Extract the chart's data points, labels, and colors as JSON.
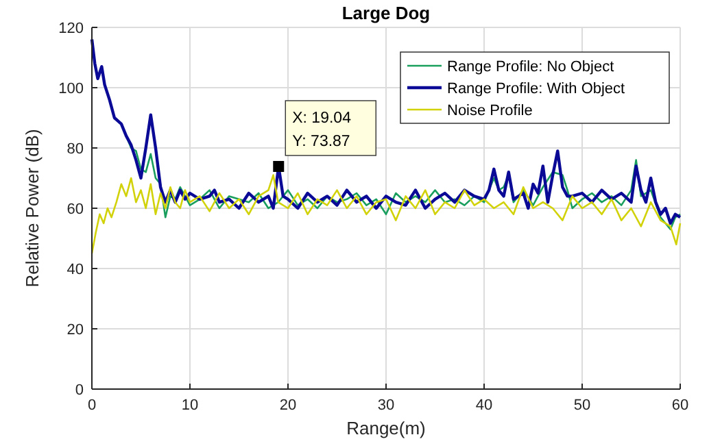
{
  "chart_data": {
    "type": "line",
    "title": "Large Dog",
    "xlabel": "Range(m)",
    "ylabel": "Relative Power (dB)",
    "xlim": [
      0,
      60
    ],
    "xticks": [
      0,
      10,
      20,
      30,
      40,
      50,
      60
    ],
    "ylim": [
      0,
      120
    ],
    "yticks": [
      0,
      20,
      40,
      60,
      80,
      100,
      120
    ],
    "grid": true,
    "legend": "top right",
    "line_style": "solid",
    "marker": "none",
    "annotations": [
      {
        "text": "X: 19.04\nY: 73.87",
        "x": 19.04,
        "y": 73.87
      }
    ],
    "series": [
      {
        "name": "Range Profile: No Object",
        "color": "#1a9e5e",
        "x": [
          3,
          3.5,
          4,
          4.5,
          5,
          5.5,
          6,
          6.5,
          7,
          7.5,
          8,
          8.5,
          9,
          10,
          11,
          12,
          13,
          14,
          15,
          16,
          17,
          18,
          19,
          20,
          21,
          22,
          23,
          24,
          25,
          26,
          27,
          28,
          29,
          30,
          31,
          32,
          33,
          34,
          35,
          36,
          37,
          38,
          39,
          40,
          41,
          41.5,
          42,
          42.5,
          43,
          44,
          45,
          46,
          47,
          48,
          48.5,
          49,
          50,
          51,
          52,
          53,
          54,
          55,
          55.5,
          56,
          57,
          58,
          59,
          59.5,
          60
        ],
        "values": [
          88,
          84,
          80,
          79,
          73,
          72,
          78,
          70,
          68,
          57,
          64,
          63,
          67,
          61,
          63,
          66,
          60,
          64,
          63,
          62,
          65,
          60,
          62,
          66,
          61,
          63,
          60,
          64,
          62,
          63,
          65,
          61,
          63,
          58,
          65,
          62,
          64,
          62,
          66,
          62,
          63,
          61,
          64,
          62,
          70,
          66,
          67,
          71,
          62,
          66,
          61,
          67,
          72,
          71,
          66,
          60,
          63,
          65,
          62,
          64,
          61,
          66,
          76,
          64,
          66,
          57,
          53,
          57,
          58
        ]
      },
      {
        "name": "Range Profile: With Object",
        "color": "#0a0a96",
        "x": [
          0,
          0.3,
          0.6,
          1,
          1.3,
          1.8,
          2.3,
          3,
          3.5,
          4,
          4.5,
          5,
          5.5,
          6,
          6.5,
          7,
          7.5,
          8,
          8.5,
          9,
          9.5,
          10,
          11,
          12,
          12.5,
          13,
          14,
          15,
          16,
          17,
          18,
          18.5,
          19.04,
          19.5,
          20,
          21,
          22,
          23,
          24,
          25,
          26,
          27,
          28,
          29,
          30,
          31,
          32,
          33,
          34,
          35,
          36,
          37,
          38,
          39,
          40,
          40.5,
          41,
          41.5,
          42,
          42.5,
          43,
          44,
          44.5,
          45,
          45.5,
          46,
          46.5,
          47,
          47.5,
          48,
          48.5,
          49,
          50,
          51,
          52,
          53,
          54,
          55,
          55.5,
          56,
          56.5,
          57,
          57.5,
          58,
          58.5,
          59,
          59.5,
          60
        ],
        "values": [
          116,
          108,
          103,
          107,
          101,
          96,
          90,
          88,
          84,
          81,
          76,
          70,
          80,
          91,
          80,
          67,
          62,
          66,
          62,
          66,
          63,
          65,
          63,
          64,
          66,
          62,
          63,
          60,
          65,
          62,
          64,
          60,
          73.87,
          64,
          63,
          60,
          65,
          62,
          64,
          61,
          66,
          62,
          64,
          60,
          64,
          62,
          61,
          66,
          60,
          63,
          65,
          62,
          66,
          64,
          63,
          66,
          73,
          66,
          64,
          72,
          63,
          65,
          60,
          68,
          65,
          74,
          62,
          71,
          79,
          67,
          64,
          64,
          65,
          62,
          66,
          63,
          65,
          62,
          74,
          66,
          62,
          70,
          62,
          58,
          60,
          55,
          58,
          57
        ]
      },
      {
        "name": "Noise Profile",
        "color": "#d2d20a",
        "x": [
          0,
          0.4,
          0.8,
          1.2,
          1.6,
          2,
          2.5,
          3,
          3.5,
          4,
          4.5,
          5,
          5.5,
          6,
          6.5,
          7,
          7.5,
          8,
          8.5,
          9,
          9.5,
          10,
          11,
          12,
          13,
          14,
          15,
          16,
          17,
          18,
          18.5,
          19,
          20,
          21,
          22,
          23,
          24,
          25,
          26,
          27,
          28,
          29,
          30,
          31,
          32,
          33,
          34,
          35,
          36,
          37,
          38,
          39,
          40,
          41,
          42,
          43,
          44,
          45,
          46,
          47,
          48,
          49,
          50,
          51,
          52,
          53,
          54,
          55,
          56,
          57,
          58,
          59,
          59.6,
          60
        ],
        "values": [
          45,
          52,
          58,
          55,
          60,
          57,
          62,
          68,
          64,
          70,
          62,
          66,
          60,
          68,
          58,
          65,
          60,
          67,
          62,
          60,
          66,
          62,
          64,
          59,
          65,
          60,
          63,
          58,
          64,
          66,
          71,
          62,
          60,
          65,
          58,
          63,
          61,
          66,
          60,
          64,
          58,
          62,
          63,
          56,
          64,
          60,
          66,
          58,
          62,
          60,
          66,
          61,
          63,
          60,
          62,
          58,
          67,
          60,
          62,
          60,
          56,
          64,
          60,
          62,
          58,
          63,
          56,
          60,
          54,
          62,
          56,
          54,
          48,
          55
        ]
      }
    ]
  }
}
